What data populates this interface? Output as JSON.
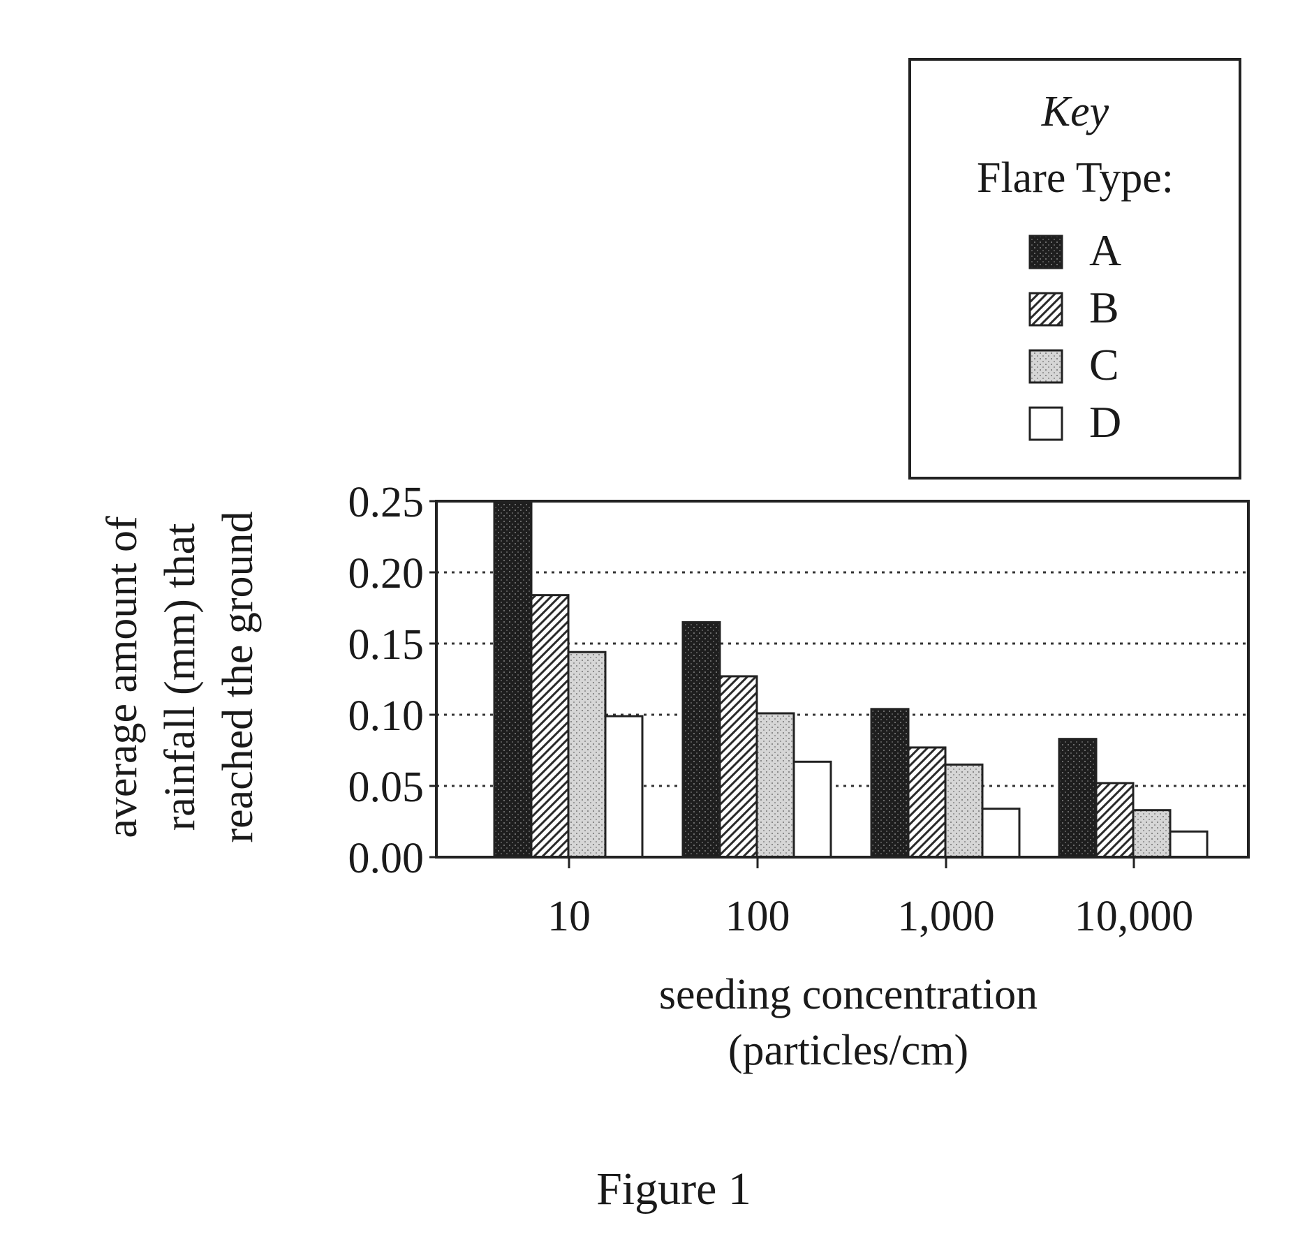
{
  "chart_data": {
    "type": "bar",
    "categories": [
      "10",
      "100",
      "1,000",
      "10,000"
    ],
    "series": [
      {
        "name": "A",
        "values": [
          0.25,
          0.165,
          0.104,
          0.083
        ]
      },
      {
        "name": "B",
        "values": [
          0.184,
          0.127,
          0.077,
          0.052
        ]
      },
      {
        "name": "C",
        "values": [
          0.144,
          0.101,
          0.065,
          0.033
        ]
      },
      {
        "name": "D",
        "values": [
          0.099,
          0.067,
          0.034,
          0.018
        ]
      }
    ],
    "xlabel_lines": [
      "seeding concentration",
      "(particles/cm)"
    ],
    "ylabel_lines": [
      "average amount of",
      "rainfall (mm) that",
      "reached the ground"
    ],
    "ylim": [
      0,
      0.25
    ],
    "yticks": [
      "0.00",
      "0.05",
      "0.10",
      "0.15",
      "0.20",
      "0.25"
    ],
    "ytick_values": [
      0,
      0.05,
      0.1,
      0.15,
      0.2,
      0.25
    ],
    "grid": "horizontal-dotted",
    "legend": {
      "title": "Key",
      "subtitle": "Flare Type:",
      "placement": "top-right, above plot",
      "patterns": [
        "dark-stipple",
        "diagonal-hatch",
        "light-stipple",
        "white"
      ]
    }
  },
  "caption": "Figure 1"
}
